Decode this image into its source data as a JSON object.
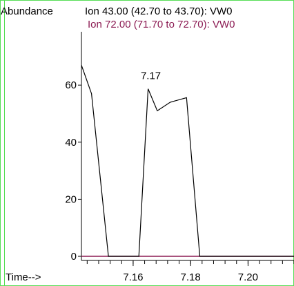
{
  "chart_data": {
    "type": "line",
    "ylabel": "Abundance",
    "xlabel": "Time-->",
    "series": [
      {
        "name": "Ion  43.00 (42.70 to 43.70): VW0",
        "color": "#000000",
        "x": [
          7.142,
          7.1455,
          7.1514,
          7.1545,
          7.1588,
          7.162,
          7.1652,
          7.1684,
          7.1729,
          7.1786,
          7.1832,
          7.189,
          7.195,
          7.203,
          7.21,
          7.216
        ],
        "y": [
          67,
          57,
          0,
          0,
          0,
          0,
          58.7,
          51,
          54,
          55.6,
          0,
          0,
          0,
          0,
          0,
          0
        ]
      },
      {
        "name": "Ion  72.00 (71.70 to 72.70): VW0",
        "color": "#8b1a52",
        "x": [
          7.142,
          7.216
        ],
        "y": [
          0,
          0
        ]
      }
    ],
    "annotations": [
      {
        "text": "7.17",
        "x": 7.1652,
        "y": 58.7
      }
    ],
    "xticks": [
      "7.16",
      "7.18",
      "7.20"
    ],
    "yticks": [
      "0",
      "20",
      "40",
      "60"
    ],
    "xlim": [
      7.142,
      7.216
    ],
    "ylim": [
      -1.2,
      75.3
    ]
  }
}
